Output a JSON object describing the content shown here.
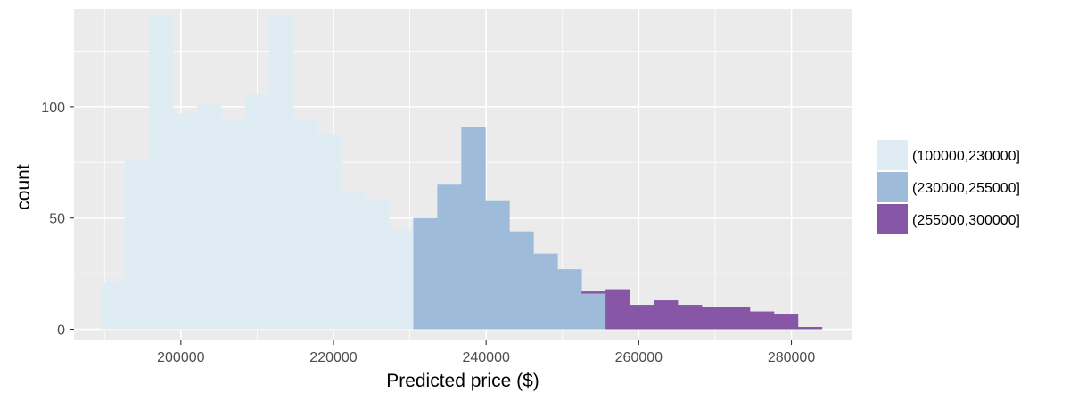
{
  "chart_data": {
    "type": "bar",
    "subtype": "stacked histogram",
    "title": "",
    "xlabel": "Predicted price ($)",
    "ylabel": "count",
    "xlim": [
      186000,
      288000
    ],
    "ylim": [
      -5,
      144
    ],
    "x_ticks": [
      200000,
      220000,
      240000,
      260000,
      280000
    ],
    "x_tick_labels": [
      "200000",
      "220000",
      "240000",
      "260000",
      "280000"
    ],
    "y_ticks": [
      0,
      50,
      100
    ],
    "y_tick_labels": [
      "0",
      "50",
      "100"
    ],
    "grid": true,
    "legend_position": "right",
    "bin_width": 3150,
    "bin_starts": [
      189500,
      192650,
      195800,
      198950,
      202100,
      205250,
      208400,
      211550,
      214700,
      217850,
      221000,
      224150,
      227300,
      230450,
      233600,
      236750,
      239900,
      243050,
      246200,
      249350,
      252500,
      255650,
      258800,
      261950,
      265100,
      268250,
      271400,
      274550,
      277700,
      280850
    ],
    "series": [
      {
        "name": "(100000,230000]",
        "color": "#e0ecf4",
        "values": [
          21,
          76,
          141,
          97,
          101,
          95,
          106,
          141,
          94,
          88,
          62,
          58,
          45,
          0,
          0,
          0,
          0,
          0,
          0,
          0,
          0,
          0,
          0,
          0,
          0,
          0,
          0,
          0,
          0,
          0
        ]
      },
      {
        "name": "(230000,255000]",
        "color": "#9ebcda",
        "values": [
          0,
          0,
          0,
          0,
          0,
          0,
          0,
          0,
          0,
          0,
          0,
          0,
          0,
          50,
          65,
          91,
          58,
          44,
          34,
          27,
          16,
          0,
          0,
          0,
          0,
          0,
          0,
          0,
          0,
          0
        ]
      },
      {
        "name": "(255000,300000]",
        "color": "#8856a7",
        "values": [
          0,
          0,
          0,
          0,
          0,
          0,
          0,
          0,
          0,
          0,
          0,
          0,
          0,
          0,
          0,
          0,
          0,
          0,
          0,
          0,
          1,
          18,
          11,
          13,
          11,
          10,
          10,
          8,
          7,
          1
        ]
      }
    ]
  }
}
